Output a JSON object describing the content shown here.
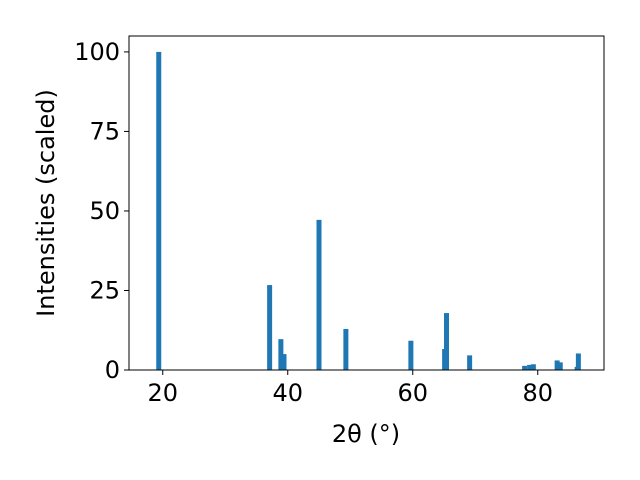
{
  "chart_data": {
    "type": "bar",
    "xlabel": "2θ (°)",
    "ylabel": "Intensities (scaled)",
    "x": [
      19.36,
      37.1,
      38.9,
      39.4,
      45.0,
      49.3,
      59.7,
      65.1,
      65.4,
      69.1,
      77.9,
      78.7,
      79.3,
      83.1,
      83.6,
      86.3,
      86.5
    ],
    "values": [
      100,
      26.7,
      9.7,
      5,
      47.2,
      12.9,
      9.2,
      6.6,
      17.9,
      4.6,
      1.3,
      1.6,
      1.8,
      3,
      2.4,
      1,
      5.2
    ],
    "color": "#1f77b4",
    "xlim": [
      14.6,
      90.6
    ],
    "xticks": [
      20,
      40,
      60,
      80
    ],
    "ylim": [
      0,
      105
    ],
    "yticks": [
      0,
      25,
      50,
      75,
      100
    ]
  }
}
